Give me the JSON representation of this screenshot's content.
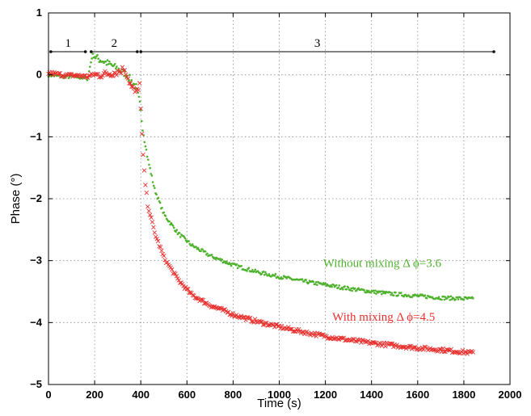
{
  "chart_data": {
    "type": "scatter",
    "xlabel": "Time (s)",
    "ylabel": "Phase (°)",
    "xlim": [
      0,
      2000
    ],
    "ylim": [
      -5,
      1
    ],
    "xticks": [
      "0",
      "200",
      "400",
      "600",
      "800",
      "1000",
      "1200",
      "1400",
      "1600",
      "1800",
      "2000"
    ],
    "yticks": [
      "1",
      "0",
      "−1",
      "−2",
      "−3",
      "−4",
      "−5"
    ],
    "grid": true,
    "stages": [
      {
        "label": "1",
        "x_start": 10,
        "x_end": 160
      },
      {
        "label": "2",
        "x_start": 185,
        "x_end": 385
      },
      {
        "label": "3",
        "x_start": 400,
        "x_end": 1930
      }
    ],
    "series": [
      {
        "name": "Without mixing",
        "color": "#4fb22e",
        "marker": "dot",
        "curve": {
          "x": [
            0,
            40,
            80,
            120,
            150,
            170,
            190,
            220,
            260,
            300,
            340,
            360,
            380,
            395,
            410,
            430,
            460,
            500,
            560,
            620,
            700,
            800,
            900,
            1000,
            1100,
            1200,
            1300,
            1400,
            1500,
            1600,
            1700,
            1780,
            1840
          ],
          "y": [
            0.0,
            -0.02,
            -0.03,
            -0.03,
            -0.05,
            -0.06,
            0.32,
            0.25,
            0.18,
            0.1,
            0.0,
            -0.1,
            -0.2,
            -0.45,
            -0.9,
            -1.35,
            -1.85,
            -2.25,
            -2.55,
            -2.75,
            -2.92,
            -3.07,
            -3.18,
            -3.26,
            -3.33,
            -3.39,
            -3.45,
            -3.5,
            -3.54,
            -3.57,
            -3.6,
            -3.61,
            -3.62
          ]
        }
      },
      {
        "name": "With mixing",
        "color": "#e8302e",
        "marker": "x",
        "curve": {
          "x": [
            0,
            40,
            80,
            120,
            150,
            170,
            190,
            220,
            260,
            300,
            330,
            360,
            380,
            395,
            405,
            415,
            430,
            460,
            500,
            560,
            620,
            700,
            800,
            900,
            1000,
            1100,
            1200,
            1300,
            1400,
            1500,
            1600,
            1700,
            1780,
            1840
          ],
          "y": [
            0.03,
            0.01,
            -0.01,
            -0.01,
            -0.02,
            -0.03,
            0.0,
            0.0,
            0.02,
            0.05,
            0.1,
            -0.2,
            -0.3,
            -0.15,
            -1.0,
            -1.6,
            -2.1,
            -2.55,
            -2.95,
            -3.3,
            -3.55,
            -3.72,
            -3.87,
            -3.98,
            -4.07,
            -4.15,
            -4.22,
            -4.28,
            -4.33,
            -4.37,
            -4.41,
            -4.44,
            -4.47,
            -4.49
          ]
        }
      }
    ],
    "annotations": [
      {
        "text": "Without mixing Δ ϕ=3.6",
        "x": 1190,
        "y": -3.1,
        "color": "#4fb22e"
      },
      {
        "text": "With mixing Δ ϕ=4.5",
        "x": 1230,
        "y": -3.97,
        "color": "#e8302e"
      }
    ]
  }
}
